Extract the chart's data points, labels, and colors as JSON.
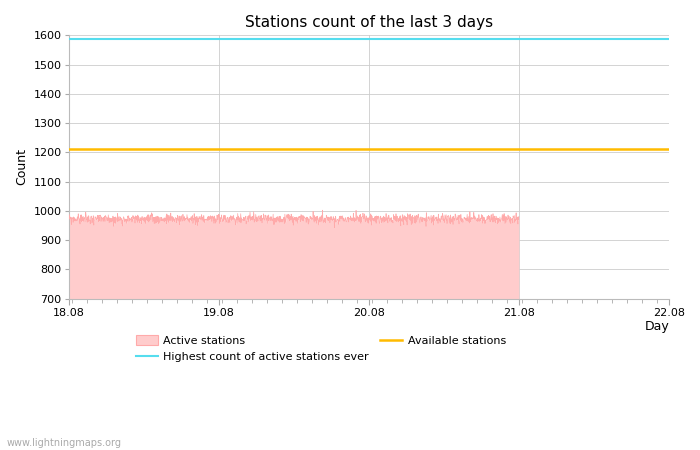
{
  "title": "Stations count of the last 3 days",
  "xlabel": "Day",
  "ylabel": "Count",
  "ylim": [
    700,
    1600
  ],
  "yticks": [
    700,
    800,
    900,
    1000,
    1100,
    1200,
    1300,
    1400,
    1500,
    1600
  ],
  "x_start": 18.08,
  "x_end": 22.08,
  "xticks": [
    18.08,
    19.08,
    20.08,
    21.08,
    22.08
  ],
  "xtick_labels": [
    "18.08",
    "19.08",
    "20.08",
    "21.08",
    "22.08"
  ],
  "active_stations_mean": 972,
  "active_stations_noise": 8,
  "active_stations_drop_x": 21.08,
  "highest_count_ever": 1586,
  "available_stations": 1213,
  "active_fill_color": "#ffcccc",
  "active_line_color": "#ffaaaa",
  "highest_line_color": "#55ddee",
  "available_line_color": "#ffbb00",
  "bg_color": "#ffffff",
  "grid_color": "#cccccc",
  "title_fontsize": 11,
  "axis_label_fontsize": 9,
  "tick_fontsize": 8,
  "watermark": "www.lightningmaps.org"
}
